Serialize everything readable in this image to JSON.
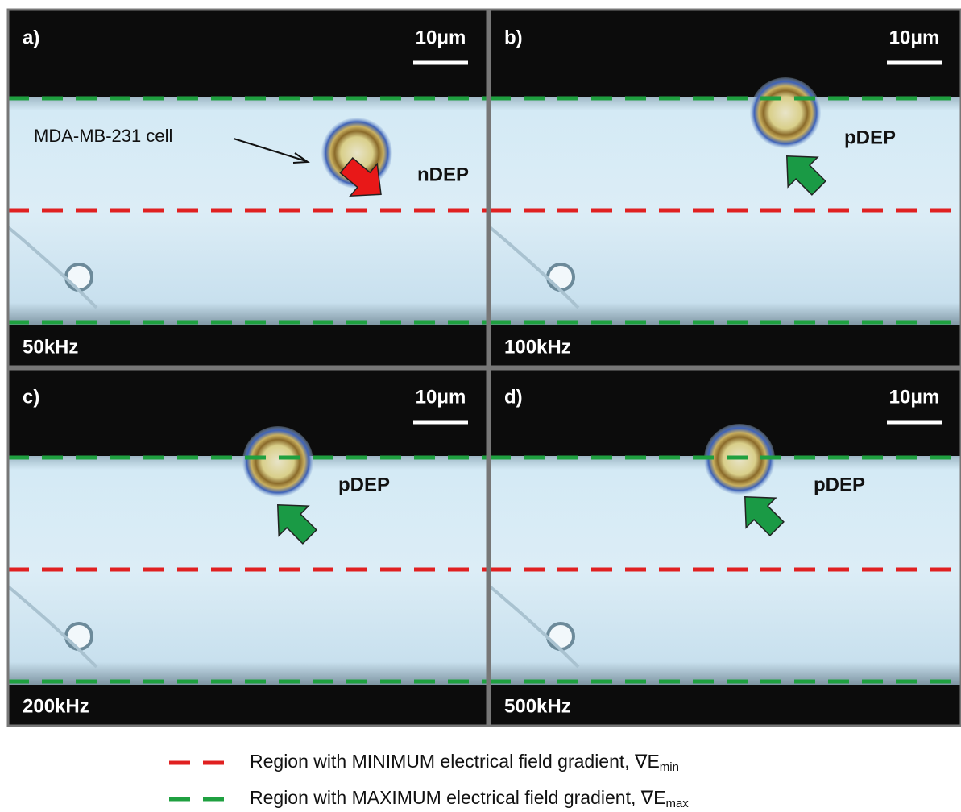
{
  "panels": [
    {
      "label": "a)",
      "scale": "10μm",
      "frequency": "50kHz",
      "annotation": "nDEP",
      "cell_label": "MDA-MB-231 cell"
    },
    {
      "label": "b)",
      "scale": "10μm",
      "frequency": "100kHz",
      "annotation": "pDEP"
    },
    {
      "label": "c)",
      "scale": "10μm",
      "frequency": "200kHz",
      "annotation": "pDEP"
    },
    {
      "label": "d)",
      "scale": "10μm",
      "frequency": "500kHz",
      "annotation": "pDEP"
    }
  ],
  "legend": [
    {
      "text": "Region with MINIMUM electrical field gradient, ∇E",
      "subscript": "min"
    },
    {
      "text": "Region with MAXIMUM electrical field gradient, ∇E",
      "subscript": "max"
    }
  ]
}
